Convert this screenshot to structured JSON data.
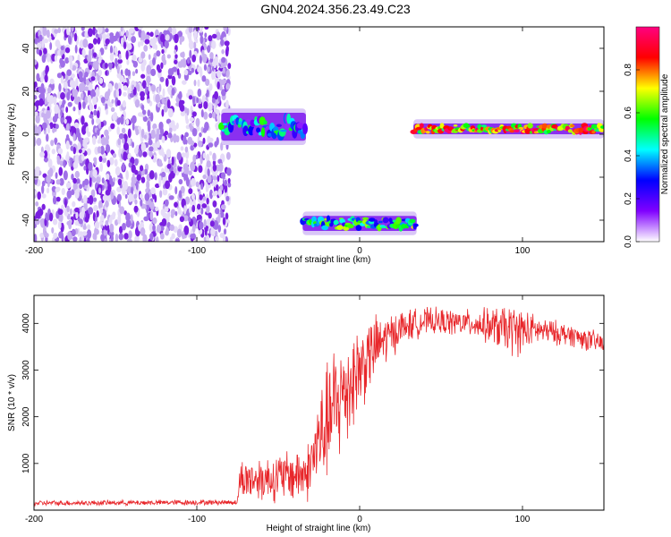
{
  "title": "GN04.2024.356.23.49.C23",
  "chart_data": [
    {
      "type": "heatmap",
      "title": "GN04.2024.356.23.49.C23",
      "xlabel": "Height of straight line (km)",
      "ylabel": "Frequency (Hz)",
      "xlim": [
        -200,
        150
      ],
      "ylim": [
        -50,
        50
      ],
      "xticks": [
        -200,
        -100,
        0,
        100
      ],
      "yticks": [
        -40,
        -20,
        0,
        20,
        40
      ],
      "colorbar": {
        "label": "Normalized spectral amplitude",
        "range": [
          0,
          1
        ],
        "ticks": [
          "0.0",
          "0.2",
          "0.4",
          "0.6",
          "0.8"
        ],
        "colors": [
          "#ffffff",
          "#8000ff",
          "#0000ff",
          "#00ffff",
          "#00ff00",
          "#ffff00",
          "#ff0000",
          "#ff0080"
        ]
      },
      "segments": [
        {
          "x": [
            -200,
            -80
          ],
          "freq": [
            -50,
            50
          ],
          "amplitude": 0.1,
          "kind": "noise"
        },
        {
          "x": [
            -85,
            -33
          ],
          "freq": [
            -3,
            10
          ],
          "amplitude": 0.35,
          "kind": "signal"
        },
        {
          "x": [
            -35,
            35
          ],
          "freq": [
            -45,
            -38
          ],
          "amplitude": 0.45,
          "kind": "signal"
        },
        {
          "x": [
            33,
            150
          ],
          "freq": [
            0,
            5
          ],
          "amplitude": 0.75,
          "kind": "signal"
        }
      ]
    },
    {
      "type": "line",
      "xlabel": "Height of straight line (km)",
      "ylabel": "SNR (10 * v/v)",
      "xlim": [
        -200,
        150
      ],
      "ylim": [
        0,
        4600
      ],
      "xticks": [
        -200,
        -100,
        0,
        100
      ],
      "yticks": [
        1000,
        2000,
        3000,
        4000
      ],
      "color": "#e8272b",
      "grid": false,
      "envelope": [
        {
          "x": -200,
          "mean": 150,
          "spread": 60
        },
        {
          "x": -75,
          "mean": 170,
          "spread": 60
        },
        {
          "x": -74,
          "mean": 650,
          "spread": 450
        },
        {
          "x": -50,
          "mean": 700,
          "spread": 550
        },
        {
          "x": -32,
          "mean": 800,
          "spread": 650
        },
        {
          "x": -25,
          "mean": 1500,
          "spread": 1100
        },
        {
          "x": -15,
          "mean": 2200,
          "spread": 1500
        },
        {
          "x": -5,
          "mean": 2800,
          "spread": 1200
        },
        {
          "x": 10,
          "mean": 3500,
          "spread": 700
        },
        {
          "x": 25,
          "mean": 3900,
          "spread": 400
        },
        {
          "x": 40,
          "mean": 4050,
          "spread": 300
        },
        {
          "x": 70,
          "mean": 4000,
          "spread": 300
        },
        {
          "x": 95,
          "mean": 3850,
          "spread": 600
        },
        {
          "x": 110,
          "mean": 3850,
          "spread": 300
        },
        {
          "x": 130,
          "mean": 3750,
          "spread": 250
        },
        {
          "x": 150,
          "mean": 3550,
          "spread": 250
        }
      ]
    }
  ]
}
